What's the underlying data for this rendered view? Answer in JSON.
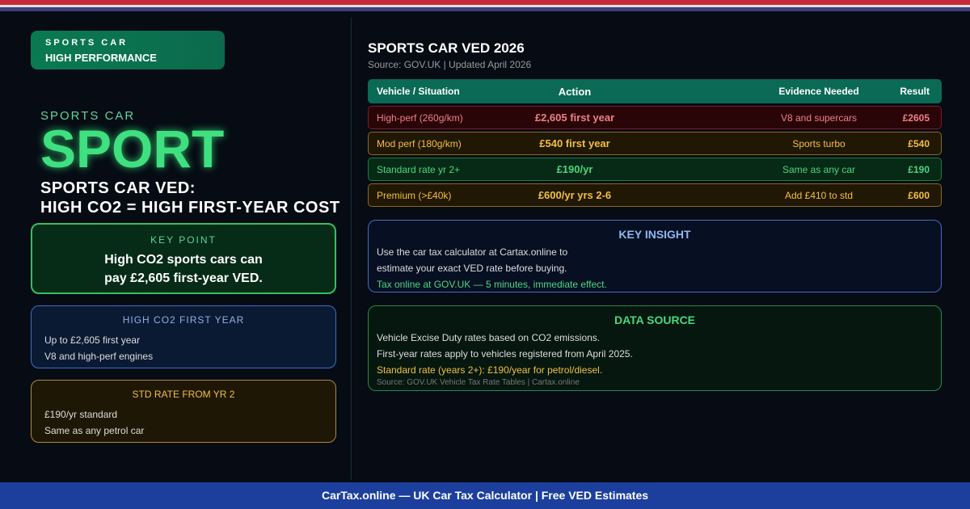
{
  "badge": {
    "line1": "SPORTS CAR",
    "line2": "HIGH PERFORMANCE"
  },
  "hero": {
    "kicker": "SPORTS CAR",
    "big": "SPORT",
    "headline1": "SPORTS CAR VED:",
    "headline2": "HIGH CO2 = HIGH FIRST-YEAR COST"
  },
  "key_point": {
    "title": "KEY POINT",
    "line1": "High CO2 sports cars can",
    "line2": "pay £2,605 first-year VED."
  },
  "card_high": {
    "title": "HIGH CO2 FIRST YEAR",
    "lines": [
      "Up to £2,605 first year",
      "V8 and high-perf engines"
    ]
  },
  "card_std": {
    "title": "STD RATE FROM YR 2",
    "lines": [
      "£190/yr standard",
      "Same as any petrol car"
    ]
  },
  "right": {
    "title": "SPORTS CAR VED 2026",
    "source": "Source: GOV.UK | Updated April 2026"
  },
  "table": {
    "headers": [
      "Vehicle / Situation",
      "Action",
      "Evidence Needed",
      "Result"
    ],
    "rows": [
      {
        "vehicle": "High-perf (260g/km)",
        "action": "£2,605 first year",
        "evidence": "V8 and supercars",
        "result": "£2605",
        "status": "red"
      },
      {
        "vehicle": "Mod perf (180g/km)",
        "action": "£540 first year",
        "evidence": "Sports turbo",
        "result": "£540",
        "status": "amber"
      },
      {
        "vehicle": "Standard rate yr 2+",
        "action": "£190/yr",
        "evidence": "Same as any car",
        "result": "£190",
        "status": "green"
      },
      {
        "vehicle": "Premium (>£40k)",
        "action": "£600/yr yrs 2-6",
        "evidence": "Add £410 to std",
        "result": "£600",
        "status": "amber"
      }
    ]
  },
  "insight": {
    "title": "KEY INSIGHT",
    "line1": "Use the car tax calculator at Cartax.online to",
    "line2": "estimate your exact VED rate before buying.",
    "line3": "Tax online at GOV.UK — 5 minutes, immediate effect."
  },
  "data_source": {
    "title": "DATA SOURCE",
    "line1": "Vehicle Excise Duty rates based on CO2 emissions.",
    "line2": "First-year rates apply to vehicles registered from April 2025.",
    "line3": "Standard rate (years 2+): £190/year for petrol/diesel.",
    "line4": "Source: GOV.UK Vehicle Tax Rate Tables | Cartax.online"
  },
  "footer": "CarTax.online — UK Car Tax Calculator | Free VED Estimates",
  "colors": {
    "accent_green": "#3fe07f",
    "red": "#f07f88",
    "amber": "#f2c040",
    "footer_blue": "#1c3f9e"
  }
}
